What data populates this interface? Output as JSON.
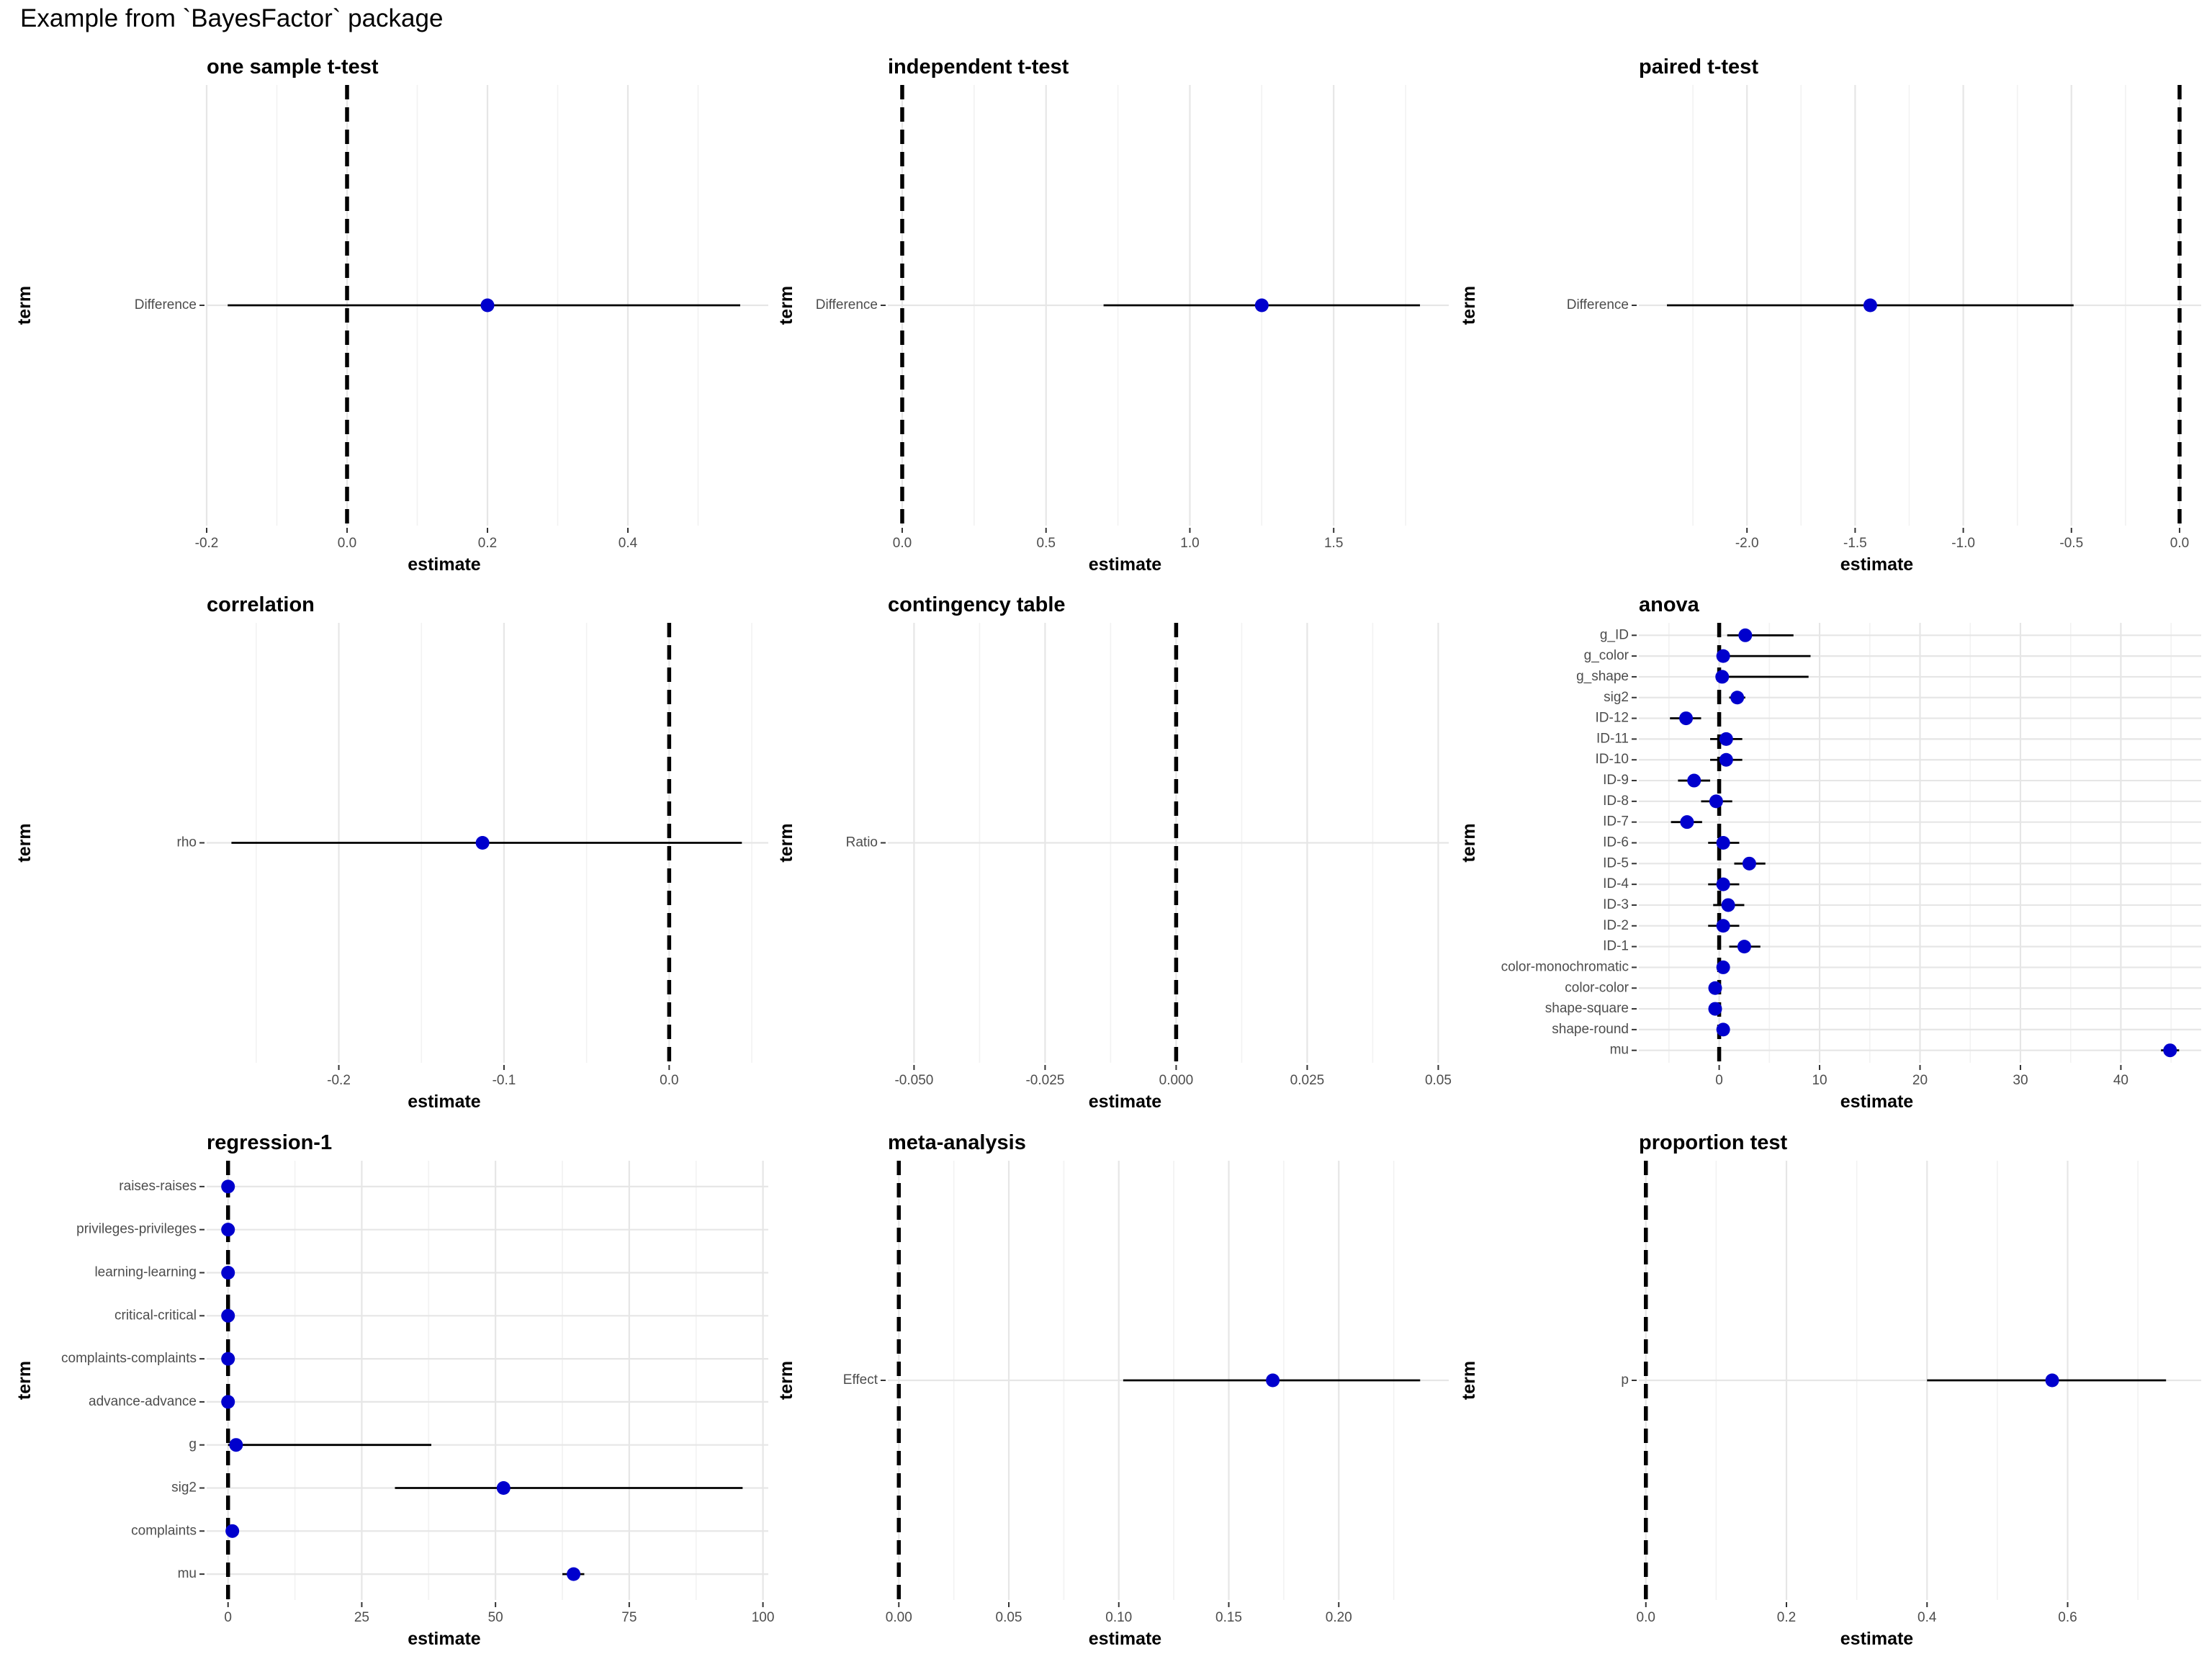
{
  "title": "Example from `BayesFactor` package",
  "chart_data": [
    {
      "type": "dot-whisker",
      "title": "one sample t-test",
      "xlabel": "estimate",
      "ylabel": "term",
      "xlim": [
        -0.2,
        0.6
      ],
      "xticks": [
        -0.2,
        0.0,
        0.2,
        0.4
      ],
      "xtick_labels": [
        "-0.2",
        "0.0",
        "0.2",
        "0.4"
      ],
      "reference_line": 0,
      "grid": true,
      "terms": [
        "Difference"
      ],
      "estimates": [
        0.2
      ],
      "conf_low": [
        -0.17
      ],
      "conf_high": [
        0.56
      ]
    },
    {
      "type": "dot-whisker",
      "title": "independent t-test",
      "xlabel": "estimate",
      "ylabel": "term",
      "xlim": [
        -0.05,
        1.9
      ],
      "xticks": [
        0.0,
        0.5,
        1.0,
        1.5
      ],
      "xtick_labels": [
        "0.0",
        "0.5",
        "1.0",
        "1.5"
      ],
      "reference_line": 0,
      "grid": true,
      "terms": [
        "Difference"
      ],
      "estimates": [
        1.25
      ],
      "conf_low": [
        0.7
      ],
      "conf_high": [
        1.8
      ]
    },
    {
      "type": "dot-whisker",
      "title": "paired t-test",
      "xlabel": "estimate",
      "ylabel": "term",
      "xlim": [
        -2.5,
        0.1
      ],
      "xticks": [
        -2.0,
        -1.5,
        -1.0,
        -0.5,
        0.0
      ],
      "xtick_labels": [
        "-2.0",
        "-1.5",
        "-1.0",
        "-0.5",
        "0.0"
      ],
      "reference_line": 0,
      "grid": true,
      "terms": [
        "Difference"
      ],
      "estimates": [
        -1.43
      ],
      "conf_low": [
        -2.37
      ],
      "conf_high": [
        -0.49
      ]
    },
    {
      "type": "dot-whisker",
      "title": "correlation",
      "xlabel": "estimate",
      "ylabel": "term",
      "xlim": [
        -0.28,
        0.06
      ],
      "xticks": [
        -0.2,
        -0.1,
        0.0
      ],
      "xtick_labels": [
        "-0.2",
        "-0.1",
        "0.0"
      ],
      "reference_line": 0,
      "grid": true,
      "terms": [
        "rho"
      ],
      "estimates": [
        -0.113
      ],
      "conf_low": [
        -0.265
      ],
      "conf_high": [
        0.044
      ]
    },
    {
      "type": "dot-whisker",
      "title": "contingency table",
      "xlabel": "estimate",
      "ylabel": "term",
      "xlim": [
        -0.055,
        0.052
      ],
      "xticks": [
        -0.05,
        -0.025,
        0.0,
        0.025,
        0.05
      ],
      "xtick_labels": [
        "-0.050",
        "-0.025",
        "0.000",
        "0.025",
        "0.05"
      ],
      "reference_line": 0,
      "grid": true,
      "terms": [
        "Ratio"
      ],
      "estimates": [],
      "conf_low": [],
      "conf_high": []
    },
    {
      "type": "dot-whisker",
      "title": "anova",
      "xlabel": "estimate",
      "ylabel": "term",
      "xlim": [
        -8,
        48
      ],
      "xticks": [
        0,
        10,
        20,
        30,
        40
      ],
      "xtick_labels": [
        "0",
        "10",
        "20",
        "30",
        "40"
      ],
      "reference_line": 0,
      "grid": true,
      "terms": [
        "g_ID",
        "g_color",
        "g_shape",
        "sig2",
        "ID-12",
        "ID-11",
        "ID-10",
        "ID-9",
        "ID-8",
        "ID-7",
        "ID-6",
        "ID-5",
        "ID-4",
        "ID-3",
        "ID-2",
        "ID-1",
        "color-monochromatic",
        "color-color",
        "shape-square",
        "shape-round",
        "mu"
      ],
      "estimates": [
        2.6,
        0.4,
        0.3,
        1.8,
        -3.3,
        0.7,
        0.7,
        -2.5,
        -0.3,
        -3.2,
        0.4,
        3.0,
        0.4,
        0.9,
        0.4,
        2.5,
        0.4,
        -0.4,
        -0.4,
        0.4,
        44.9
      ],
      "conf_low": [
        0.8,
        -0.2,
        -0.2,
        1.0,
        -4.9,
        -0.9,
        -0.9,
        -4.1,
        -1.8,
        -4.8,
        -1.1,
        1.5,
        -1.1,
        -0.6,
        -1.1,
        1.0,
        0.1,
        -0.7,
        -0.7,
        0.1,
        44.0
      ],
      "conf_high": [
        7.4,
        9.1,
        8.9,
        2.6,
        -1.8,
        2.3,
        2.3,
        -0.9,
        1.3,
        -1.7,
        2.0,
        4.6,
        2.0,
        2.5,
        2.0,
        4.1,
        0.7,
        -0.1,
        -0.1,
        0.7,
        45.8
      ]
    },
    {
      "type": "dot-whisker",
      "title": "regression-1",
      "xlabel": "estimate",
      "ylabel": "term",
      "xlim": [
        -4,
        101
      ],
      "xticks": [
        0,
        25,
        50,
        75,
        100
      ],
      "xtick_labels": [
        "0",
        "25",
        "50",
        "75",
        "100"
      ],
      "reference_line": 0,
      "grid": true,
      "terms": [
        "raises-raises",
        "privileges-privileges",
        "learning-learning",
        "critical-critical",
        "complaints-complaints",
        "advance-advance",
        "g",
        "sig2",
        "complaints",
        "mu"
      ],
      "estimates": [
        0,
        0,
        0,
        0,
        0,
        0,
        1.5,
        51.5,
        0.8,
        64.6
      ],
      "conf_low": [
        0,
        0,
        0,
        0,
        0,
        0,
        0,
        31.2,
        0.5,
        62.5
      ],
      "conf_high": [
        0,
        0,
        0,
        0,
        0,
        0,
        38.0,
        96.2,
        1.2,
        66.6
      ]
    },
    {
      "type": "dot-whisker",
      "title": "meta-analysis",
      "xlabel": "estimate",
      "ylabel": "term",
      "xlim": [
        -0.005,
        0.25
      ],
      "xticks": [
        0.0,
        0.05,
        0.1,
        0.15,
        0.2
      ],
      "xtick_labels": [
        "0.00",
        "0.05",
        "0.10",
        "0.15",
        "0.20"
      ],
      "reference_line": 0,
      "grid": true,
      "terms": [
        "Effect"
      ],
      "estimates": [
        0.17
      ],
      "conf_low": [
        0.102
      ],
      "conf_high": [
        0.237
      ]
    },
    {
      "type": "dot-whisker",
      "title": "proportion test",
      "xlabel": "estimate",
      "ylabel": "term",
      "xlim": [
        -0.01,
        0.79
      ],
      "xticks": [
        0.0,
        0.2,
        0.4,
        0.6
      ],
      "xtick_labels": [
        "0.0",
        "0.2",
        "0.4",
        "0.6"
      ],
      "reference_line": 0,
      "grid": true,
      "terms": [
        "p"
      ],
      "estimates": [
        0.578
      ],
      "conf_low": [
        0.4
      ],
      "conf_high": [
        0.74
      ]
    }
  ]
}
